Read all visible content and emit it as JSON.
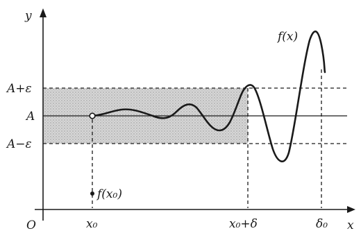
{
  "axes": {
    "x_label": "x",
    "y_label": "y",
    "origin_label": "O"
  },
  "y_ticks": {
    "upper": "A+ε",
    "middle": "A",
    "lower": "A−ε"
  },
  "x_ticks": {
    "x0": "x₀",
    "x0_delta": "x₀+δ",
    "delta0": "δ₀"
  },
  "annotations": {
    "curve_label": "f(x)",
    "point_label": "f(x₀)"
  },
  "colors": {
    "band_fill": "#c9c9c9",
    "ink": "#1a1a1a"
  }
}
